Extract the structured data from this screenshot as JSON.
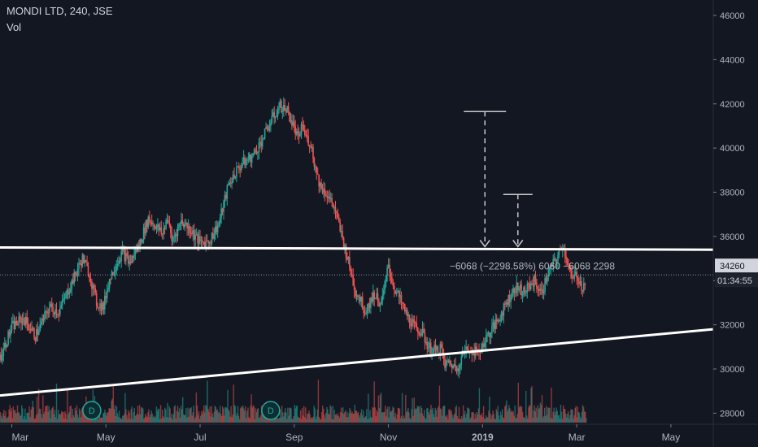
{
  "header": {
    "title": "MONDI LTD, 240, JSE",
    "indicator": "Vol"
  },
  "badges": {
    "marker": "D"
  },
  "colors": {
    "background": "#131722",
    "up": "#26a69a",
    "down": "#ef5350",
    "text": "#d1d4dc",
    "axis_text": "#b2b5be",
    "line": "#ffffff",
    "price_label_bg": "#d1d4dc",
    "price_label_fg": "#131722"
  },
  "chart_data": {
    "type": "line",
    "title": "MONDI LTD, 240, JSE",
    "ylim": [
      27500,
      46700
    ],
    "y_ticks": [
      28000,
      30000,
      32000,
      34000,
      36000,
      38000,
      40000,
      42000,
      44000,
      46000
    ],
    "y_tick_labels": [
      "28000",
      "30000",
      "32000",
      "34000",
      "36000",
      "38000",
      "40000",
      "42000",
      "44000",
      "46000"
    ],
    "x_tick_labels": [
      "Mar",
      "May",
      "Jul",
      "Sep",
      "Nov",
      "2019",
      "Mar",
      "May"
    ],
    "x_tick_months": [
      0,
      2,
      4,
      6,
      8,
      10,
      12,
      14
    ],
    "xlim_months": [
      -0.25,
      14.9
    ],
    "series": [
      {
        "x_months": [
          -0.25,
          0.0,
          0.25,
          0.5,
          0.8,
          1.0,
          1.25,
          1.5,
          1.65,
          1.8,
          1.95,
          2.05,
          2.2,
          2.35,
          2.5,
          2.7,
          2.9,
          3.05,
          3.2,
          3.3,
          3.4,
          3.6,
          3.8,
          4.0,
          4.2,
          4.4,
          4.6,
          4.75,
          4.9,
          5.1,
          5.3,
          5.5,
          5.7,
          5.85,
          6.0,
          6.1,
          6.15,
          6.25,
          6.35,
          6.45,
          6.55,
          6.7,
          6.85,
          7.05,
          7.2,
          7.3,
          7.4,
          7.5,
          7.7,
          7.85,
          8.0,
          8.1,
          8.25,
          8.4,
          8.55,
          8.7,
          8.85,
          9.0,
          9.1,
          9.2,
          9.3,
          9.45,
          9.6,
          9.75,
          9.9,
          10.05,
          10.2,
          10.35,
          10.5,
          10.7,
          10.9,
          11.1,
          11.25,
          11.4,
          11.55,
          11.7,
          11.8,
          11.9,
          12.0,
          12.1,
          12.2
        ],
        "values": [
          30500,
          31900,
          32300,
          31500,
          32800,
          32600,
          33800,
          35000,
          34300,
          33000,
          32800,
          33900,
          34700,
          35300,
          34800,
          35600,
          36800,
          36500,
          36100,
          36900,
          35800,
          36700,
          36300,
          35700,
          35800,
          36600,
          38300,
          38900,
          39300,
          39600,
          40300,
          41200,
          41900,
          41700,
          40900,
          40300,
          41100,
          40500,
          40200,
          39100,
          38300,
          37900,
          37300,
          35700,
          34400,
          33500,
          33200,
          32600,
          33400,
          32900,
          34700,
          33800,
          33100,
          32400,
          31900,
          31700,
          31000,
          30800,
          31000,
          30200,
          30300,
          30000,
          30800,
          30900,
          30700,
          31300,
          31800,
          32300,
          33000,
          33700,
          33500,
          34000,
          33400,
          34400,
          34900,
          35600,
          34900,
          34000,
          34300,
          33700,
          34000
        ]
      }
    ],
    "trendlines": [
      {
        "name": "",
        "from": [
          -0.25,
          35500
        ],
        "to": [
          14.9,
          35400
        ]
      },
      {
        "name": "",
        "from": [
          -0.25,
          28800
        ],
        "to": [
          14.9,
          31800
        ]
      }
    ],
    "annotations": {
      "projections": [
        {
          "from_value": 41650,
          "to_value": 35500,
          "x_month": 10.05
        },
        {
          "from_value": 37900,
          "to_value": 35500,
          "x_month": 10.75
        }
      ],
      "measure_text": "−6068 (−2298.58%) 6060  −6068 2298",
      "measure_y": 34700,
      "measure_x_month": 9.3
    },
    "current_price": {
      "value": 34260,
      "label": "34260",
      "countdown": "01:34:55"
    },
    "volume_badges_x_months": [
      1.7,
      5.5
    ]
  }
}
